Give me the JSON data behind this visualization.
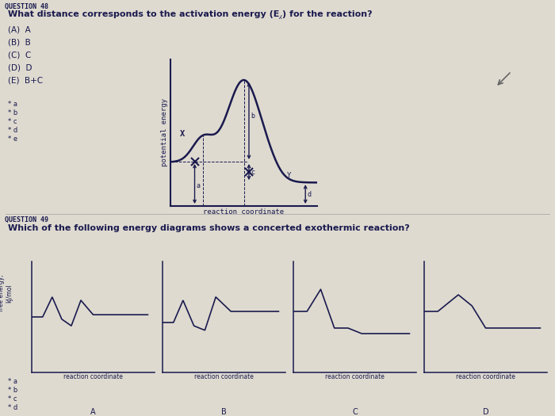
{
  "bg_color": "#dedad0",
  "title_q48": "QUESTION 48",
  "question_q48": "What distance corresponds to the activation energy (E⁁) for the reaction?",
  "choices": [
    "(A)  A",
    "(B)  B",
    "(C)  C",
    "(D)  D",
    "(E)  B+C"
  ],
  "answer_labels_q48": [
    "* a",
    "* b",
    "* c",
    "* d",
    "* e"
  ],
  "title_q49": "QUESTION 49",
  "question_q49": "Which of the following energy diagrams shows a concerted exothermic reaction?",
  "answer_labels_q49": [
    "* a",
    "* b",
    "* c",
    "* d"
  ],
  "diagram_ylabel": "potential energy",
  "diagram_xlabel": "reaction coordinate",
  "diagram2_ylabel": "free energy,\nkJ/mol",
  "sub_labels": [
    "A",
    "B",
    "C",
    "D"
  ],
  "rc_label": "reaction coordinate",
  "cc": "#1a1a4e",
  "tc": "#1a1a4e",
  "separator_color": "#aaaaaa"
}
